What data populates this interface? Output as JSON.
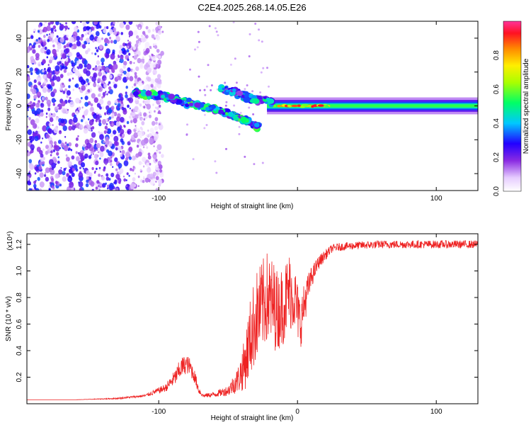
{
  "chart_data": [
    {
      "type": "heatmap",
      "title": "C2E4.2025.268.14.05.E26",
      "xlabel": "Height of straight line (km)",
      "ylabel": "Frequency (Hz)",
      "xlim": [
        -195,
        130
      ],
      "ylim": [
        -50,
        50
      ],
      "xticks": [
        -100,
        0,
        100
      ],
      "xtick_labels": [
        "-100",
        "",
        "100"
      ],
      "yticks": [
        -40,
        -20,
        0,
        20,
        40
      ],
      "ytick_labels": [
        "-40",
        "-20",
        "0",
        "20",
        "40"
      ],
      "colorbar": {
        "label": "Normalized spectral amplitude",
        "range": [
          0,
          1
        ],
        "ticks": [
          0.0,
          0.2,
          0.4,
          0.6,
          0.8
        ],
        "tick_labels": [
          "0.0",
          "0.2",
          "0.4",
          "0.6",
          "0.8"
        ]
      },
      "features": [
        {
          "name": "noise-region",
          "x_range": [
            -195,
            -105
          ],
          "freq_range": [
            -50,
            50
          ],
          "amplitude": 0.25
        },
        {
          "name": "diffraction-streak",
          "x": [
            -118,
            -100,
            -85,
            -70,
            -55,
            -42,
            -33,
            -28
          ],
          "freq": [
            8,
            6,
            3,
            0,
            -3,
            -7,
            -10,
            -13
          ],
          "amplitude": 0.45
        },
        {
          "name": "upper-branch",
          "x": [
            -55,
            -45,
            -35,
            -28,
            -22,
            -18
          ],
          "freq": [
            10,
            8,
            5,
            3,
            4,
            2
          ],
          "amplitude": 0.4
        },
        {
          "name": "carrier-line",
          "x_range": [
            -22,
            130
          ],
          "freq": 0,
          "amplitude": 0.9
        }
      ]
    },
    {
      "type": "line",
      "xlabel": "Height of straight line (km)",
      "ylabel": "SNR (10 * v/v)",
      "y_multiplier_label": "(x10⁴)",
      "xlim": [
        -195,
        130
      ],
      "ylim": [
        0,
        1.28
      ],
      "xticks": [
        -100,
        0,
        100
      ],
      "xtick_labels": [
        "-100",
        "0",
        "100"
      ],
      "yticks": [
        0.2,
        0.4,
        0.6,
        0.8,
        1.0,
        1.2
      ],
      "ytick_labels": [
        "0.2",
        "0.4",
        "0.6",
        "0.8",
        "1.0",
        "1.2"
      ],
      "series": [
        {
          "name": "SNR",
          "color": "#ee2222",
          "x": [
            -195,
            -160,
            -130,
            -110,
            -95,
            -88,
            -84,
            -80,
            -77,
            -74,
            -71,
            -68,
            -60,
            -50,
            -43,
            -38,
            -34,
            -30,
            -26,
            -22,
            -18,
            -14,
            -10,
            -6,
            -2,
            2,
            6,
            10,
            15,
            20,
            25,
            30,
            40,
            60,
            80,
            100,
            130
          ],
          "y": [
            0.03,
            0.03,
            0.04,
            0.06,
            0.12,
            0.2,
            0.27,
            0.3,
            0.27,
            0.2,
            0.1,
            0.06,
            0.07,
            0.1,
            0.18,
            0.3,
            0.5,
            0.65,
            0.72,
            0.8,
            0.75,
            0.7,
            0.75,
            0.85,
            0.8,
            0.6,
            0.8,
            0.95,
            1.06,
            1.12,
            1.17,
            1.18,
            1.19,
            1.2,
            1.2,
            1.2,
            1.2
          ],
          "noise": [
            0,
            0,
            0.005,
            0.01,
            0.03,
            0.06,
            0.08,
            0.07,
            0.07,
            0.05,
            0.03,
            0.015,
            0.02,
            0.04,
            0.1,
            0.2,
            0.3,
            0.35,
            0.35,
            0.35,
            0.35,
            0.3,
            0.3,
            0.3,
            0.25,
            0.2,
            0.15,
            0.08,
            0.05,
            0.04,
            0.03,
            0.03,
            0.03,
            0.03,
            0.03,
            0.03,
            0.03
          ]
        }
      ]
    }
  ]
}
